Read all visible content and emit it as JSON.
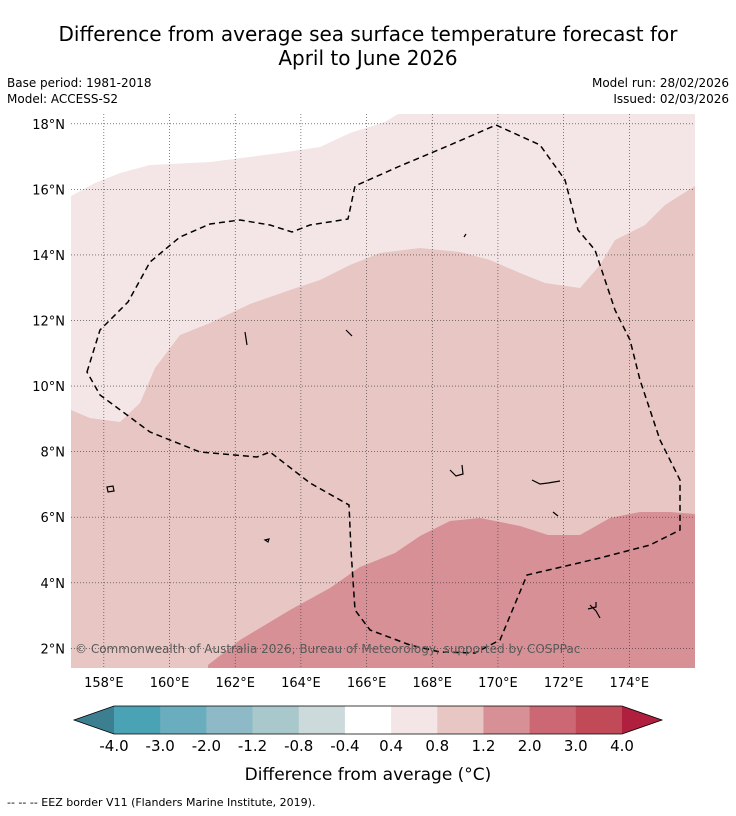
{
  "title_line1": "Difference from average sea surface temperature forecast for",
  "title_line2": "April to June 2026",
  "meta": {
    "base_period": "Base period: 1981-2018",
    "model": "Model: ACCESS-S2",
    "model_run": "Model run: 28/02/2026",
    "issued": "Issued: 02/03/2026"
  },
  "map": {
    "lon_range": [
      157.0,
      176.0
    ],
    "lat_range": [
      1.4,
      18.3
    ],
    "lon_ticks": [
      158,
      160,
      162,
      164,
      166,
      168,
      170,
      172,
      174
    ],
    "lon_labels": [
      "158°E",
      "160°E",
      "162°E",
      "164°E",
      "166°E",
      "168°E",
      "170°E",
      "172°E",
      "174°E"
    ],
    "lat_ticks": [
      2,
      4,
      6,
      8,
      10,
      12,
      14,
      16,
      18
    ],
    "lat_labels": [
      "2°N",
      "4°N",
      "6°N",
      "8°N",
      "10°N",
      "12°N",
      "14°N",
      "16°N",
      "18°N"
    ],
    "copyright": "© Commonwealth of Australia 2026, Bureau of Meteorology, supported by COSPPac"
  },
  "colorbar": {
    "labels": [
      "-4.0",
      "-3.0",
      "-2.0",
      "-1.2",
      "-0.8",
      "-0.4",
      "0.4",
      "0.8",
      "1.2",
      "2.0",
      "3.0",
      "4.0"
    ],
    "colors": [
      "#49a3b5",
      "#6aadbe",
      "#8dbac6",
      "#a9c8cc",
      "#ccdadb",
      "#ffffff",
      "#f4e6e6",
      "#e8c6c3",
      "#d69096",
      "#cc6874",
      "#c14a58"
    ],
    "low_color": "#3b7f90",
    "high_color": "#b01f3e",
    "title": "Difference from average (°C)"
  },
  "footnote": "--  --  -- EEZ border V11 (Flanders Marine Institute, 2019)."
}
